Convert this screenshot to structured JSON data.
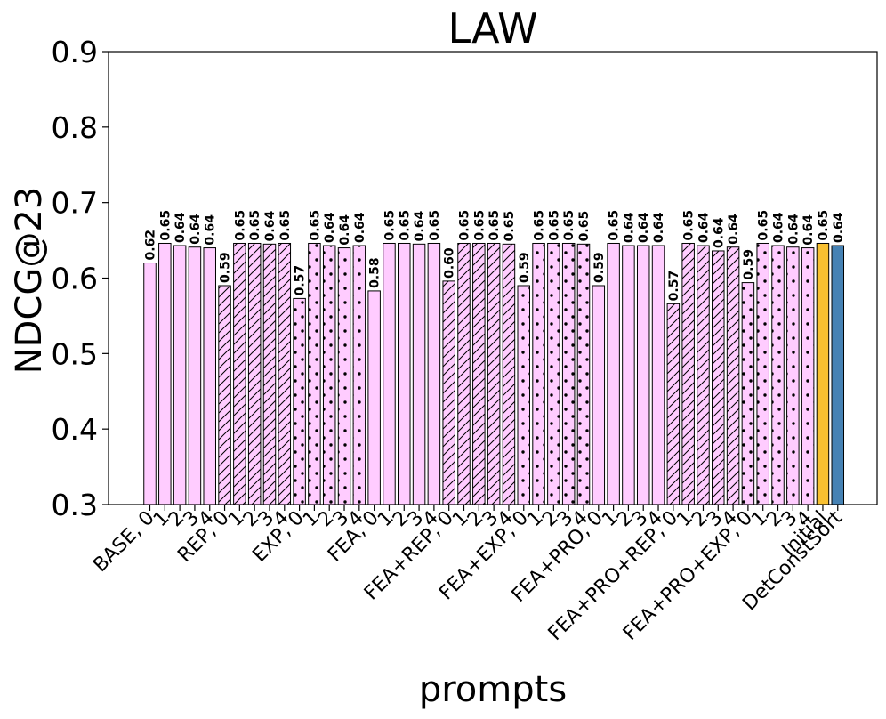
{
  "chart_data": {
    "type": "bar",
    "title": "LAW",
    "xlabel": "prompts",
    "ylabel": "NDCG@23",
    "ylim": [
      0.3,
      0.9
    ],
    "yticks": [
      "0.3",
      "0.4",
      "0.5",
      "0.6",
      "0.7",
      "0.8",
      "0.9"
    ],
    "grid": false,
    "legend": "none",
    "categories": [
      "BASE, 0",
      "1",
      "2",
      "3",
      "4",
      "REP, 0",
      "1",
      "2",
      "3",
      "4",
      "EXP, 0",
      "1",
      "2",
      "3",
      "4",
      "FEA, 0",
      "1",
      "2",
      "3",
      "4",
      "FEA+REP, 0",
      "1",
      "2",
      "3",
      "4",
      "FEA+EXP, 0",
      "1",
      "2",
      "3",
      "4",
      "FEA+PRO, 0",
      "1",
      "2",
      "3",
      "4",
      "FEA+PRO+REP, 0",
      "1",
      "2",
      "3",
      "4",
      "FEA+PRO+EXP, 0",
      "1",
      "2",
      "3",
      "4",
      "Initial",
      "DetConstSort"
    ],
    "values": [
      0.62,
      0.646,
      0.643,
      0.641,
      0.64,
      0.59,
      0.646,
      0.646,
      0.645,
      0.646,
      0.573,
      0.646,
      0.643,
      0.64,
      0.643,
      0.583,
      0.646,
      0.646,
      0.645,
      0.646,
      0.596,
      0.646,
      0.646,
      0.646,
      0.645,
      0.59,
      0.646,
      0.646,
      0.646,
      0.645,
      0.59,
      0.646,
      0.643,
      0.643,
      0.643,
      0.566,
      0.646,
      0.643,
      0.636,
      0.641,
      0.594,
      0.646,
      0.643,
      0.641,
      0.64,
      0.646,
      0.643
    ],
    "data_labels": [
      "0.62",
      "0.65",
      "0.64",
      "0.64",
      "0.64",
      "0.59",
      "0.65",
      "0.65",
      "0.64",
      "0.65",
      "0.57",
      "0.65",
      "0.64",
      "0.64",
      "0.64",
      "0.58",
      "0.65",
      "0.65",
      "0.64",
      "0.65",
      "0.60",
      "0.65",
      "0.65",
      "0.65",
      "0.65",
      "0.59",
      "0.65",
      "0.65",
      "0.65",
      "0.65",
      "0.59",
      "0.65",
      "0.64",
      "0.64",
      "0.64",
      "0.57",
      "0.65",
      "0.64",
      "0.64",
      "0.64",
      "0.59",
      "0.65",
      "0.64",
      "0.64",
      "0.64",
      "0.65",
      "0.64"
    ],
    "patterns": [
      "none",
      "none",
      "none",
      "none",
      "none",
      "hatch",
      "hatch",
      "hatch",
      "hatch",
      "hatch",
      "dots",
      "dots",
      "dots",
      "dots",
      "dots",
      "none",
      "none",
      "none",
      "none",
      "none",
      "hatch",
      "hatch",
      "hatch",
      "hatch",
      "hatch",
      "dots",
      "dots",
      "dots",
      "dots",
      "dots",
      "none",
      "none",
      "none",
      "none",
      "none",
      "hatch",
      "hatch",
      "hatch",
      "hatch",
      "hatch",
      "dots",
      "dots",
      "dots",
      "dots",
      "dots",
      "none",
      "none"
    ],
    "bar_colors": {
      "prompt": "#ffccff",
      "Initial": "#f8c031",
      "DetConstSort": "#4682b4"
    }
  }
}
